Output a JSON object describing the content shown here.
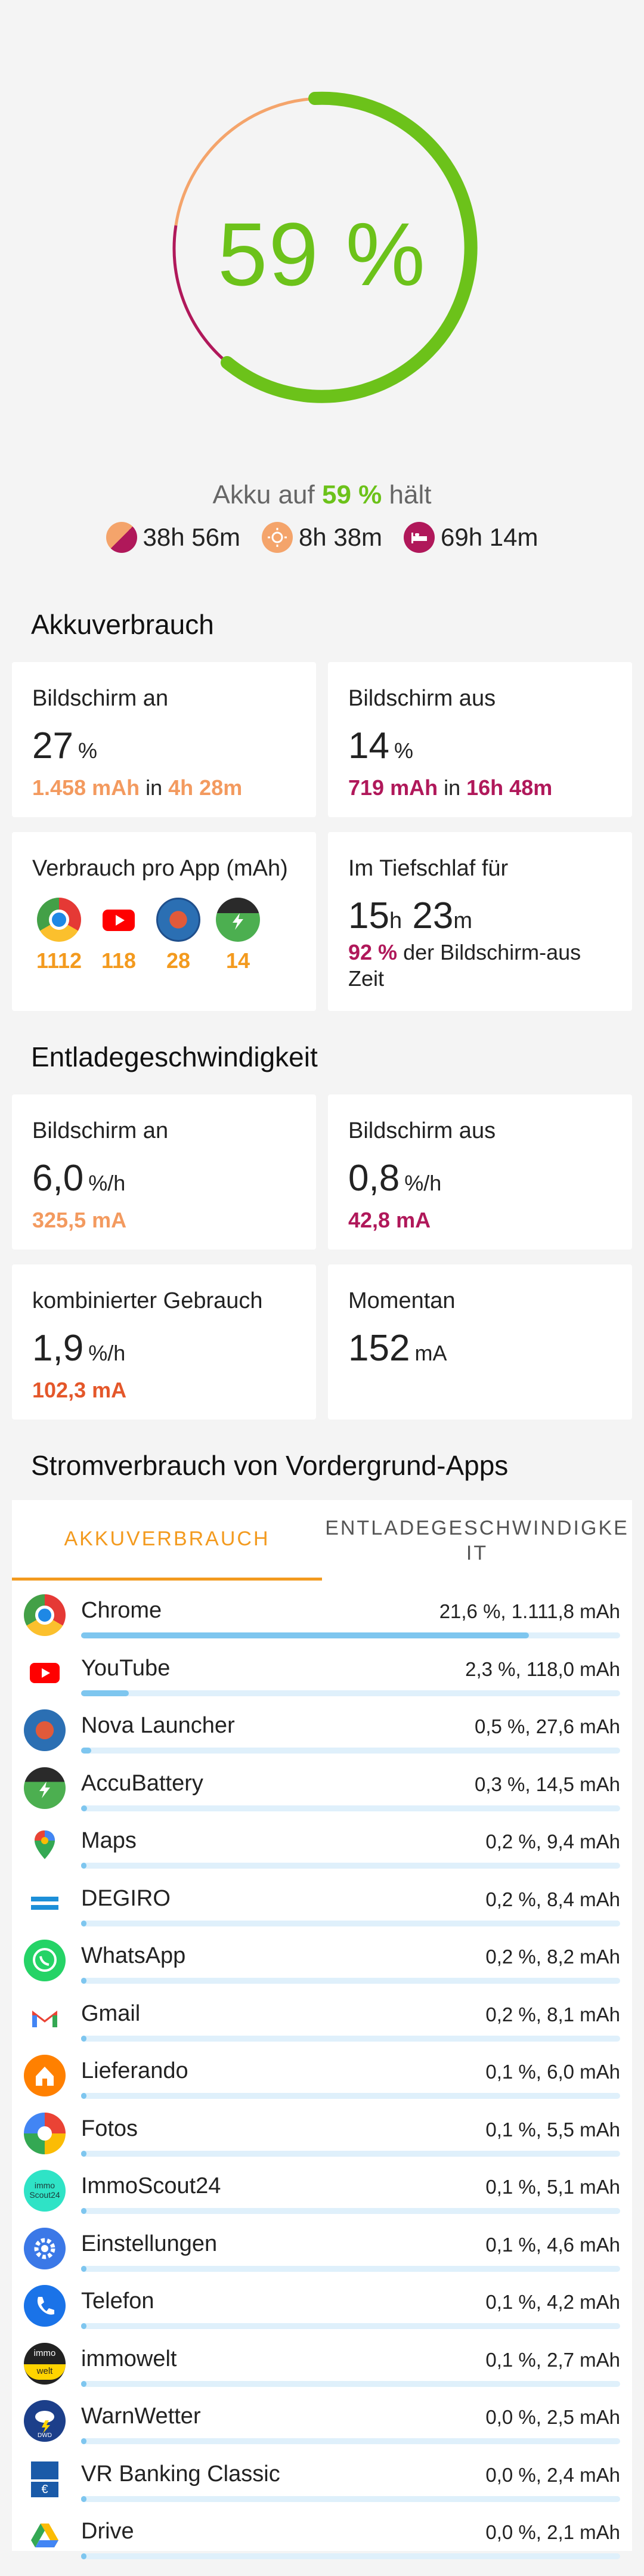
{
  "battery": {
    "percent_label": "59 %",
    "percent": 59,
    "holds_prefix": "Akku auf",
    "holds_percent": "59 %",
    "holds_suffix": "hält",
    "estimates": [
      {
        "icon": "combined-usage-icon",
        "value": "38h 56m"
      },
      {
        "icon": "screen-on-sun-icon",
        "value": "8h 38m"
      },
      {
        "icon": "sleep-bed-icon",
        "value": "69h 14m"
      }
    ]
  },
  "usage": {
    "title": "Akkuverbrauch",
    "screen_on": {
      "label": "Bildschirm an",
      "value": "27",
      "unit": "%",
      "mah": "1.458 mAh",
      "in": "in",
      "time": "4h 28m"
    },
    "screen_off": {
      "label": "Bildschirm aus",
      "value": "14",
      "unit": "%",
      "mah": "719 mAh",
      "in": "in",
      "time": "16h 48m"
    },
    "per_app": {
      "label": "Verbrauch pro App (mAh)",
      "apps": [
        {
          "name": "Chrome",
          "value": "1112"
        },
        {
          "name": "YouTube",
          "value": "118"
        },
        {
          "name": "Nova Launcher",
          "value": "28"
        },
        {
          "name": "AccuBattery",
          "value": "14"
        }
      ]
    },
    "deep_sleep": {
      "label": "Im Tiefschlaf für",
      "hours": "15",
      "h": "h",
      "minutes": "23",
      "m": "m",
      "percent": "92 %",
      "note_1": "der Bildschirm-aus",
      "note_2": "Zeit"
    }
  },
  "discharge": {
    "title": "Entladegeschwindigkeit",
    "screen_on": {
      "label": "Bildschirm an",
      "value": "6,0",
      "unit": "%/h",
      "ma": "325,5 mA"
    },
    "screen_off": {
      "label": "Bildschirm aus",
      "value": "0,8",
      "unit": "%/h",
      "ma": "42,8 mA"
    },
    "combined": {
      "label": "kombinierter Gebrauch",
      "value": "1,9",
      "unit": "%/h",
      "ma": "102,3 mA"
    },
    "current": {
      "label": "Momentan",
      "value": "152",
      "unit": "mA"
    }
  },
  "foreground": {
    "title": "Stromverbrauch von Vordergrund-Apps",
    "tabs": [
      "AKKUVERBRAUCH",
      "ENTLADEGESCHWINDIGKEIT"
    ],
    "tab2_lines": [
      "ENTLADEGESCHWINDIGKE",
      "IT"
    ],
    "apps": [
      {
        "name": "Chrome",
        "value": "21,6 %, 1.111,8 mAh",
        "share": 0.216,
        "icon": "chrome-icon"
      },
      {
        "name": "YouTube",
        "value": "2,3 %, 118,0 mAh",
        "share": 0.023,
        "icon": "youtube-icon"
      },
      {
        "name": "Nova Launcher",
        "value": "0,5 %, 27,6 mAh",
        "share": 0.005,
        "icon": "nova-launcher-icon"
      },
      {
        "name": "AccuBattery",
        "value": "0,3 %, 14,5 mAh",
        "share": 0.003,
        "icon": "accubattery-icon"
      },
      {
        "name": "Maps",
        "value": "0,2 %, 9,4 mAh",
        "share": 0.002,
        "icon": "maps-icon"
      },
      {
        "name": "DEGIRO",
        "value": "0,2 %, 8,4 mAh",
        "share": 0.002,
        "icon": "degiro-icon"
      },
      {
        "name": "WhatsApp",
        "value": "0,2 %, 8,2 mAh",
        "share": 0.002,
        "icon": "whatsapp-icon"
      },
      {
        "name": "Gmail",
        "value": "0,2 %, 8,1 mAh",
        "share": 0.002,
        "icon": "gmail-icon"
      },
      {
        "name": "Lieferando",
        "value": "0,1 %, 6,0 mAh",
        "share": 0.001,
        "icon": "lieferando-icon"
      },
      {
        "name": "Fotos",
        "value": "0,1 %, 5,5 mAh",
        "share": 0.001,
        "icon": "fotos-icon"
      },
      {
        "name": "ImmoScout24",
        "value": "0,1 %, 5,1 mAh",
        "share": 0.001,
        "icon": "immoscout24-icon"
      },
      {
        "name": "Einstellungen",
        "value": "0,1 %, 4,6 mAh",
        "share": 0.001,
        "icon": "settings-gear-icon"
      },
      {
        "name": "Telefon",
        "value": "0,1 %, 4,2 mAh",
        "share": 0.001,
        "icon": "phone-icon"
      },
      {
        "name": "immowelt",
        "value": "0,1 %, 2,7 mAh",
        "share": 0.001,
        "icon": "immowelt-icon"
      },
      {
        "name": "WarnWetter",
        "value": "0,0 %, 2,5 mAh",
        "share": 0.0,
        "icon": "warnwetter-icon"
      },
      {
        "name": "VR Banking Classic",
        "value": "0,0 %, 2,4 mAh",
        "share": 0.0,
        "icon": "vr-banking-icon"
      },
      {
        "name": "Drive",
        "value": "0,0 %, 2,1 mAh",
        "share": 0.0,
        "icon": "drive-icon"
      }
    ],
    "icon_text": {
      "immoscout": "immo Scout24",
      "immowelt": "immo welt",
      "dwd": "DWD",
      "vr": "€"
    }
  },
  "colors": {
    "green": "#6cc21a",
    "orange": "#f39a5f",
    "magenta": "#b0185a",
    "accent_tab": "#f39a1e",
    "bar": "#7ec6ef"
  }
}
